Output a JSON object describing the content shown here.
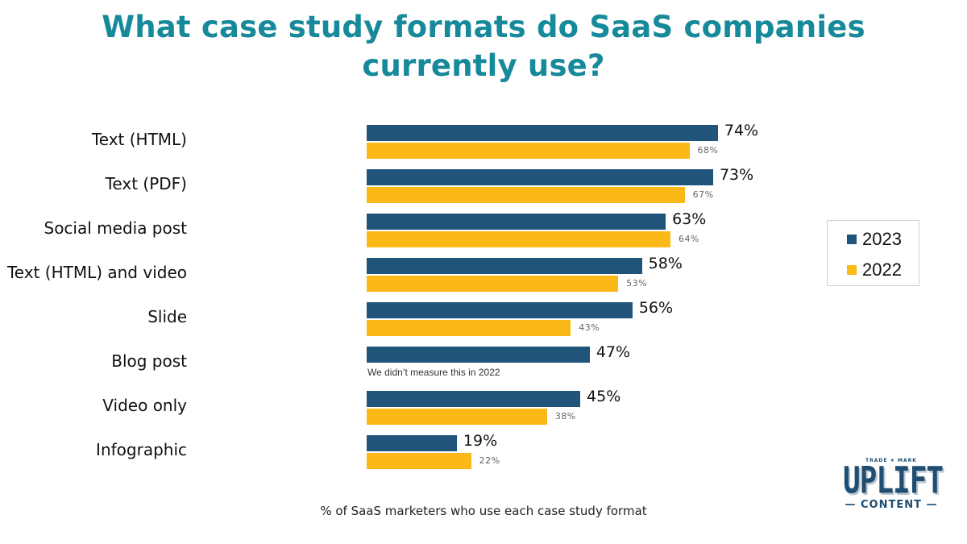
{
  "title": "What case study formats do SaaS companies currently use?",
  "title_lines": [
    "What case study formats do SaaS companies",
    "currently use?"
  ],
  "caption": "% of SaaS marketers who use each case study format",
  "colors": {
    "series_2023": "#20547a",
    "series_2022": "#fbb817",
    "title": "#16899a"
  },
  "legend": {
    "items": [
      {
        "label": "2023",
        "color": "#20547a"
      },
      {
        "label": "2022",
        "color": "#fbb817"
      }
    ]
  },
  "rows": [
    {
      "label": "Text (HTML)",
      "v2023": "74%",
      "v2022": "68%"
    },
    {
      "label": "Text (PDF)",
      "v2023": "73%",
      "v2022": "67%"
    },
    {
      "label": "Social media post",
      "v2023": "63%",
      "v2022": "64%"
    },
    {
      "label": "Text (HTML) and video",
      "v2023": "58%",
      "v2022": "53%"
    },
    {
      "label": "Slide",
      "v2023": "56%",
      "v2022": "43%"
    },
    {
      "label": "Blog post",
      "v2023": "47%",
      "v2022": null,
      "note": "We didn’t measure this in 2022"
    },
    {
      "label": "Video only",
      "v2023": "45%",
      "v2022": "38%"
    },
    {
      "label": "Infographic",
      "v2023": "19%",
      "v2022": "22%"
    }
  ],
  "logo": {
    "trademark": "TRADE ★ MARK",
    "name": "UPLIFT",
    "sub": "— CONTENT —"
  },
  "chart_data": {
    "type": "bar",
    "orientation": "horizontal",
    "title": "What case study formats do SaaS companies currently use?",
    "xlabel": "% of SaaS marketers who use each case study format",
    "ylabel": "",
    "categories": [
      "Text (HTML)",
      "Text (PDF)",
      "Social media post",
      "Text (HTML) and video",
      "Slide",
      "Blog post",
      "Video only",
      "Infographic"
    ],
    "series": [
      {
        "name": "2023",
        "color": "#20547a",
        "values": [
          74,
          73,
          63,
          58,
          56,
          47,
          45,
          19
        ]
      },
      {
        "name": "2022",
        "color": "#fbb817",
        "values": [
          68,
          67,
          64,
          53,
          43,
          null,
          38,
          22
        ]
      }
    ],
    "annotations": [
      "Blog post: We didn’t measure this in 2022"
    ],
    "legend_position": "right",
    "grid": false,
    "xlim": [
      0,
      100
    ]
  }
}
